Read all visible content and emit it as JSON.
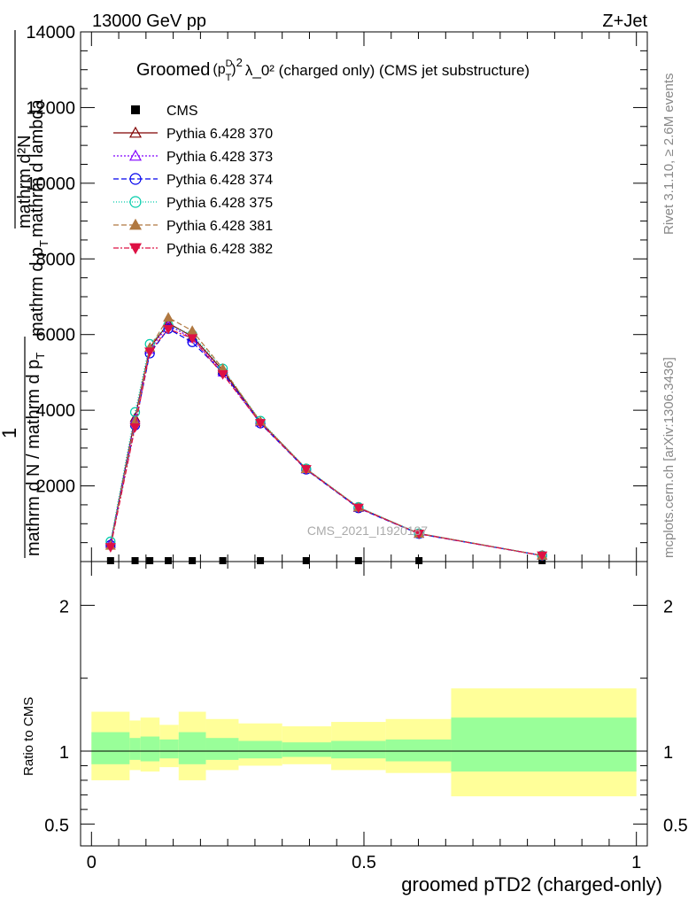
{
  "header": {
    "left": "13000 GeV pp",
    "right": "Z+Jet"
  },
  "side_labels": {
    "rivet": "Rivet 3.1.10, ≥ 2.6M events",
    "mcplots": "mcplots.cern.ch [arXiv:1306.3436]"
  },
  "watermark": "CMS_2021_I1920187",
  "chart_data": [
    {
      "type": "line",
      "title": {
        "prefix": "Groomed",
        "rest": "λ_0²  (charged only) (CMS jet substructure)",
        "p": "p",
        "T": "T",
        "D": "D",
        "sq": "2"
      },
      "ylabel": {
        "line1": "mathrm d²N",
        "line2": "mathrm d p",
        "line3": "mathrm d lambda",
        "one": "1",
        "denom1": "mathrm d N / mathrm d p",
        "T": "T"
      },
      "xlim": [
        -0.02,
        1.02
      ],
      "ylim": [
        0,
        14000
      ],
      "yticks": [
        {
          "v": 2000,
          "label": "2000"
        },
        {
          "v": 4000,
          "label": "4000"
        },
        {
          "v": 6000,
          "label": "6000"
        },
        {
          "v": 8000,
          "label": "8000"
        },
        {
          "v": 10000,
          "label": "10000"
        },
        {
          "v": 12000,
          "label": "12000"
        },
        {
          "v": 14000,
          "label": "14000"
        }
      ],
      "series": [
        {
          "name": "CMS",
          "color": "#000000",
          "marker": "square",
          "dash": "",
          "x": [
            0.035,
            0.08,
            0.107,
            0.141,
            0.185,
            0.241,
            0.31,
            0.394,
            0.49,
            0.601,
            0.827
          ],
          "y": [
            12,
            12,
            12,
            12,
            12,
            12,
            12,
            12,
            12,
            12,
            12
          ]
        },
        {
          "name": "Pythia 6.428 370",
          "color": "#800000",
          "marker": "triangle-open",
          "dash": "",
          "x": [
            0.035,
            0.08,
            0.107,
            0.141,
            0.185,
            0.241,
            0.31,
            0.394,
            0.49,
            0.601,
            0.827
          ],
          "y": [
            470,
            3800,
            5650,
            6300,
            5950,
            5050,
            3700,
            2450,
            1430,
            740,
            160
          ]
        },
        {
          "name": "Pythia 6.428 373",
          "color": "#8000ff",
          "marker": "triangle-open",
          "dash": "2,2",
          "x": [
            0.035,
            0.08,
            0.107,
            0.141,
            0.185,
            0.241,
            0.31,
            0.394,
            0.49,
            0.601,
            0.827
          ],
          "y": [
            470,
            3750,
            5600,
            6250,
            5900,
            5000,
            3680,
            2440,
            1420,
            735,
            160
          ]
        },
        {
          "name": "Pythia 6.428 374",
          "color": "#0000ee",
          "marker": "circle-open",
          "dash": "6,3",
          "x": [
            0.035,
            0.08,
            0.107,
            0.141,
            0.185,
            0.241,
            0.31,
            0.394,
            0.49,
            0.601,
            0.827
          ],
          "y": [
            440,
            3600,
            5500,
            6150,
            5800,
            5000,
            3650,
            2430,
            1410,
            730,
            158
          ]
        },
        {
          "name": "Pythia 6.428 375",
          "color": "#00ccaa",
          "marker": "circle-open",
          "dash": "1,2",
          "x": [
            0.035,
            0.08,
            0.107,
            0.141,
            0.185,
            0.241,
            0.31,
            0.394,
            0.49,
            0.601,
            0.827
          ],
          "y": [
            530,
            3950,
            5750,
            6250,
            6000,
            5100,
            3720,
            2460,
            1440,
            745,
            162
          ]
        },
        {
          "name": "Pythia 6.428 381",
          "color": "#b07840",
          "marker": "triangle-filled",
          "dash": "6,3",
          "x": [
            0.035,
            0.08,
            0.107,
            0.141,
            0.185,
            0.241,
            0.31,
            0.394,
            0.49,
            0.601,
            0.827
          ],
          "y": [
            420,
            3700,
            5650,
            6450,
            6100,
            5100,
            3700,
            2450,
            1430,
            740,
            160
          ]
        },
        {
          "name": "Pythia 6.428 382",
          "color": "#dd1144",
          "marker": "triangle-down-filled",
          "dash": "6,2,2,2",
          "x": [
            0.035,
            0.08,
            0.107,
            0.141,
            0.185,
            0.241,
            0.31,
            0.394,
            0.49,
            0.601,
            0.827
          ],
          "y": [
            380,
            3550,
            5550,
            6150,
            5900,
            4950,
            3660,
            2440,
            1420,
            735,
            158
          ]
        }
      ],
      "legend": "top-left"
    },
    {
      "type": "area",
      "ylabel": "Ratio to CMS",
      "xlabel": "groomed pTD2 (charged-only)",
      "xlim": [
        -0.02,
        1.02
      ],
      "ylim": [
        0.35,
        2.3
      ],
      "xticks": [
        {
          "v": 0,
          "label": "0"
        },
        {
          "v": 0.5,
          "label": "0.5"
        },
        {
          "v": 1,
          "label": "1"
        }
      ],
      "yticks": [
        {
          "v": 0.5,
          "label": "0.5"
        },
        {
          "v": 1,
          "label": "1"
        },
        {
          "v": 2,
          "label": "2"
        }
      ],
      "bins": [
        {
          "x0": 0.0,
          "x1": 0.07,
          "y_lo": 0.8,
          "y_hi": 1.27,
          "g_lo": 0.91,
          "g_hi": 1.13
        },
        {
          "x0": 0.07,
          "x1": 0.09,
          "y_lo": 0.87,
          "y_hi": 1.21,
          "g_lo": 0.94,
          "g_hi": 1.09
        },
        {
          "x0": 0.09,
          "x1": 0.125,
          "y_lo": 0.86,
          "y_hi": 1.23,
          "g_lo": 0.93,
          "g_hi": 1.1
        },
        {
          "x0": 0.125,
          "x1": 0.16,
          "y_lo": 0.89,
          "y_hi": 1.18,
          "g_lo": 0.95,
          "g_hi": 1.08
        },
        {
          "x0": 0.16,
          "x1": 0.21,
          "y_lo": 0.8,
          "y_hi": 1.27,
          "g_lo": 0.91,
          "g_hi": 1.13
        },
        {
          "x0": 0.21,
          "x1": 0.27,
          "y_lo": 0.87,
          "y_hi": 1.22,
          "g_lo": 0.94,
          "g_hi": 1.09
        },
        {
          "x0": 0.27,
          "x1": 0.35,
          "y_lo": 0.9,
          "y_hi": 1.19,
          "g_lo": 0.95,
          "g_hi": 1.07
        },
        {
          "x0": 0.35,
          "x1": 0.44,
          "y_lo": 0.91,
          "y_hi": 1.17,
          "g_lo": 0.96,
          "g_hi": 1.06
        },
        {
          "x0": 0.44,
          "x1": 0.54,
          "y_lo": 0.87,
          "y_hi": 1.2,
          "g_lo": 0.95,
          "g_hi": 1.07
        },
        {
          "x0": 0.54,
          "x1": 0.66,
          "y_lo": 0.85,
          "y_hi": 1.22,
          "g_lo": 0.93,
          "g_hi": 1.08
        },
        {
          "x0": 0.66,
          "x1": 1.0,
          "y_lo": 0.69,
          "y_hi": 1.43,
          "g_lo": 0.86,
          "g_hi": 1.23
        }
      ],
      "colors": {
        "outer": "#ffff99",
        "inner": "#99ff99",
        "line": "#000000"
      }
    }
  ]
}
